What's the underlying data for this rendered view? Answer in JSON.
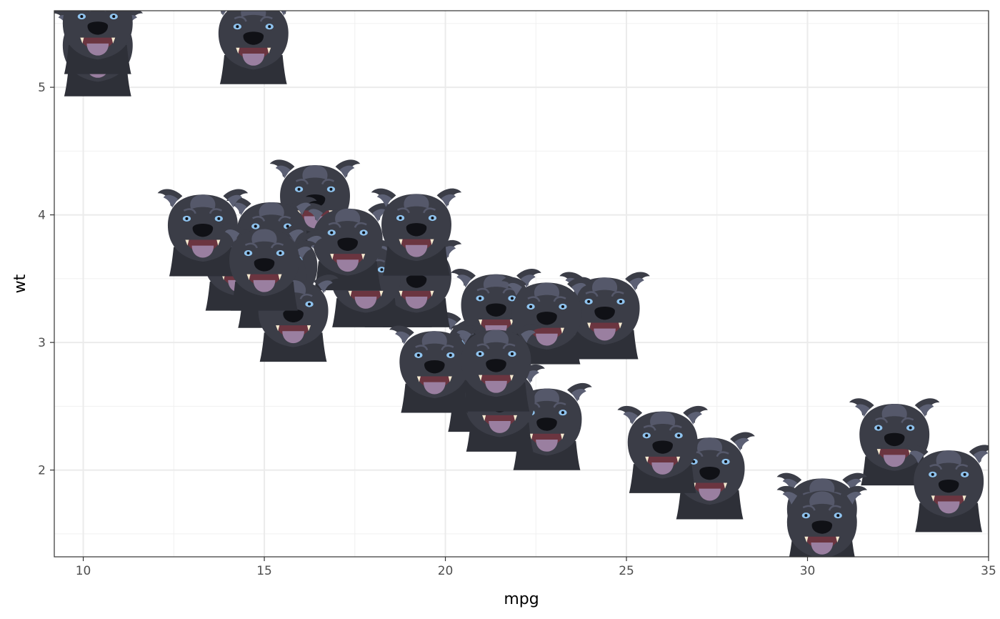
{
  "chart_data": {
    "type": "scatter",
    "title": "",
    "xlabel": "mpg",
    "ylabel": "wt",
    "xlim": [
      9.2,
      35.0
    ],
    "ylim": [
      1.32,
      5.6
    ],
    "x_ticks": [
      10,
      15,
      20,
      25,
      30,
      35
    ],
    "y_ticks": [
      2,
      3,
      4,
      5
    ],
    "x_tick_labels": [
      "10",
      "15",
      "20",
      "25",
      "30",
      "35"
    ],
    "y_tick_labels": [
      "2",
      "3",
      "4",
      "5"
    ],
    "grid": true,
    "marker": "dog-face-icon",
    "marker_colors": {
      "fur": "#3b3d47",
      "fur_light": "#55586a",
      "ear_inner": "#5c6074",
      "nose": "#101116",
      "mouth": "#6b3540",
      "tongue": "#9a7fa0",
      "eye": "#8fc3ee",
      "tooth": "#f4ead0"
    },
    "points": [
      {
        "x": 21.0,
        "y": 2.62
      },
      {
        "x": 21.0,
        "y": 2.875
      },
      {
        "x": 22.8,
        "y": 2.32
      },
      {
        "x": 21.4,
        "y": 3.215
      },
      {
        "x": 18.7,
        "y": 3.44
      },
      {
        "x": 18.1,
        "y": 3.46
      },
      {
        "x": 14.3,
        "y": 3.57
      },
      {
        "x": 24.4,
        "y": 3.19
      },
      {
        "x": 22.8,
        "y": 3.15
      },
      {
        "x": 19.2,
        "y": 3.44
      },
      {
        "x": 17.8,
        "y": 3.44
      },
      {
        "x": 16.4,
        "y": 4.07
      },
      {
        "x": 17.3,
        "y": 3.73
      },
      {
        "x": 15.2,
        "y": 3.78
      },
      {
        "x": 10.4,
        "y": 5.25
      },
      {
        "x": 10.4,
        "y": 5.424
      },
      {
        "x": 14.7,
        "y": 5.345
      },
      {
        "x": 32.4,
        "y": 2.2
      },
      {
        "x": 30.4,
        "y": 1.615
      },
      {
        "x": 33.9,
        "y": 1.835
      },
      {
        "x": 21.5,
        "y": 2.465
      },
      {
        "x": 15.5,
        "y": 3.52
      },
      {
        "x": 15.2,
        "y": 3.435
      },
      {
        "x": 13.3,
        "y": 3.84
      },
      {
        "x": 19.2,
        "y": 3.845
      },
      {
        "x": 27.3,
        "y": 1.935
      },
      {
        "x": 26.0,
        "y": 2.14
      },
      {
        "x": 30.4,
        "y": 1.513
      },
      {
        "x": 15.8,
        "y": 3.17
      },
      {
        "x": 19.7,
        "y": 2.77
      },
      {
        "x": 15.0,
        "y": 3.57
      },
      {
        "x": 21.4,
        "y": 2.78
      }
    ]
  }
}
